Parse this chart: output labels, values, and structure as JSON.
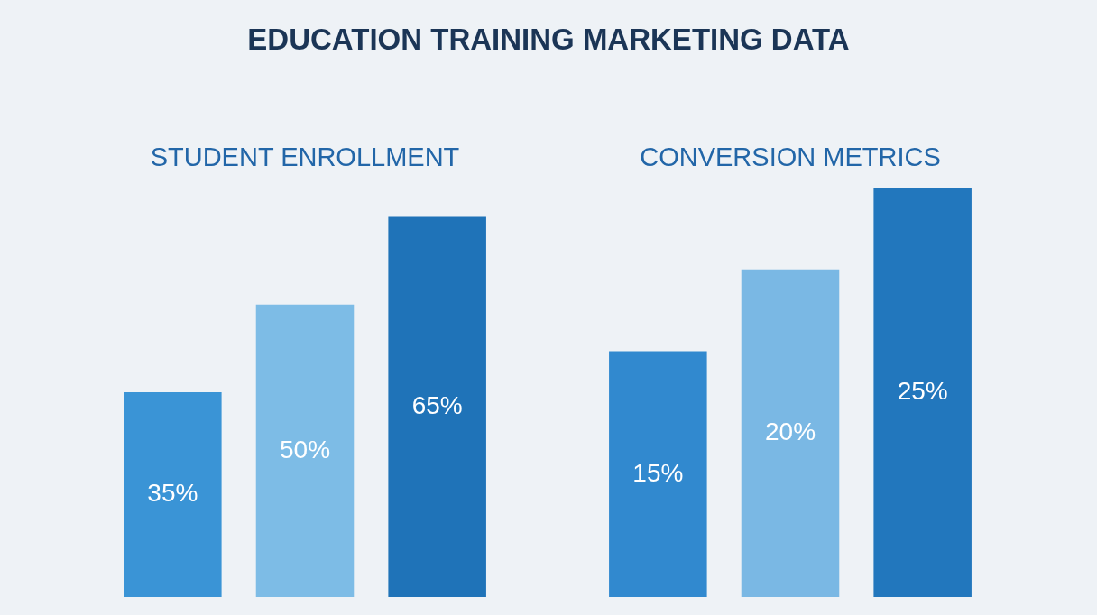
{
  "chart_data": [
    {
      "type": "other",
      "title": "EDUCATION TRAINING MARKETING DATA"
    },
    {
      "type": "bar",
      "title": "STUDENT ENROLLMENT",
      "categories": [
        null,
        null,
        null
      ],
      "values": [
        35,
        50,
        65
      ],
      "colors": [
        "#3a94d6",
        "#7dbce6",
        "#1f73b8"
      ],
      "value_labels": [
        "35%",
        "50%",
        "65%"
      ],
      "tick_labels": false
    },
    {
      "type": "bar",
      "title": "CONVERSION METRICS",
      "categories": [
        null,
        null,
        null
      ],
      "values": [
        15,
        20,
        25
      ],
      "colors": [
        "#3189cf",
        "#7ab8e4",
        "#2277bd"
      ],
      "value_labels": [
        "15%",
        "20%",
        "25%"
      ],
      "tick_labels": false
    }
  ]
}
